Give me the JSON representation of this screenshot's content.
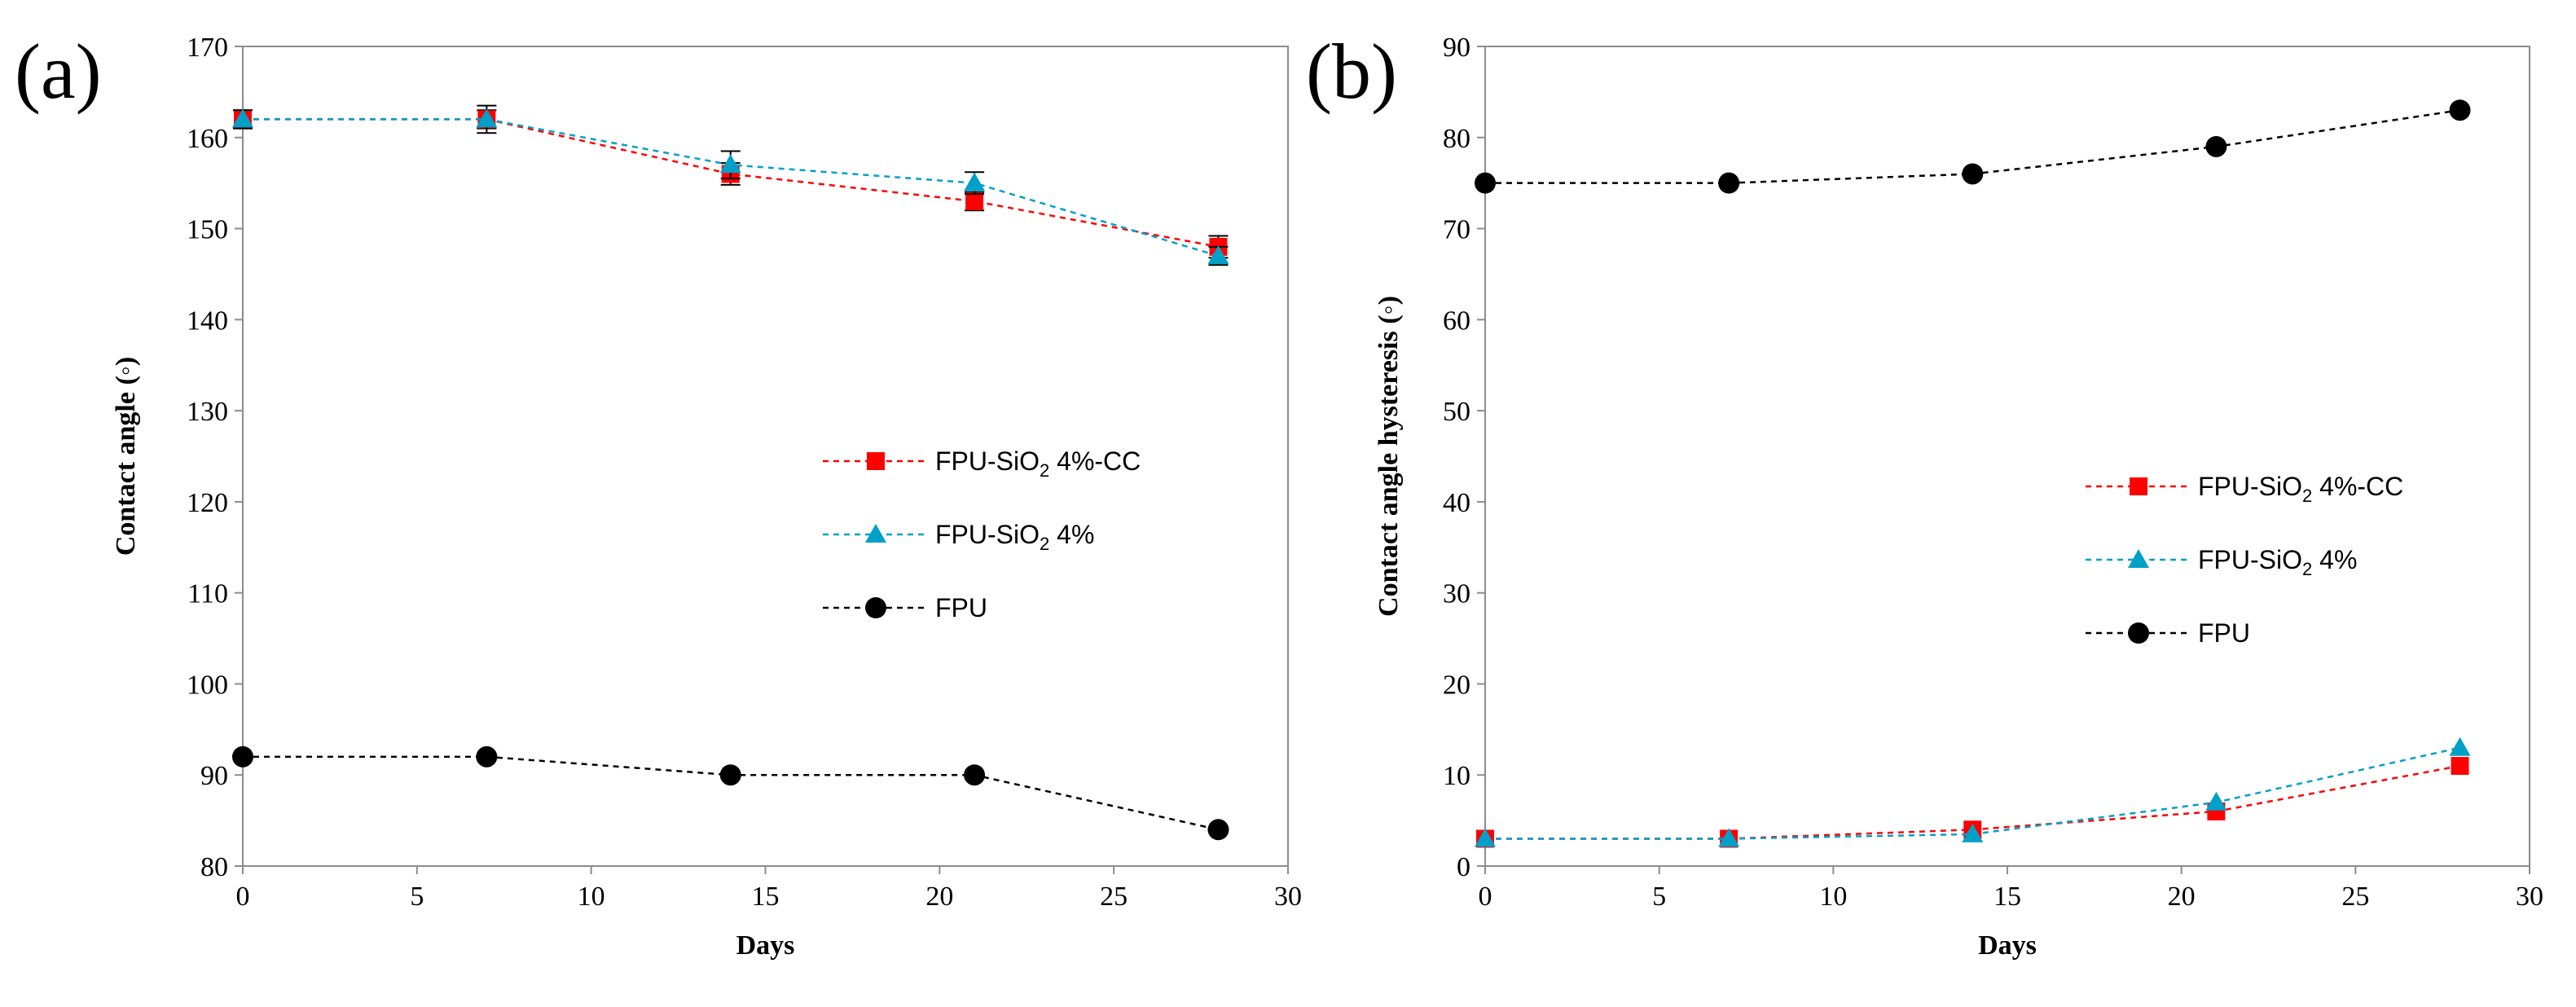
{
  "chart_data": [
    {
      "panel_label": "(a)",
      "type": "line",
      "xlabel": "Days",
      "ylabel": "Contact  angle (◦)",
      "xlim": [
        0,
        30
      ],
      "ylim": [
        80,
        170
      ],
      "xticks": [
        0,
        5,
        10,
        15,
        20,
        25,
        30
      ],
      "yticks": [
        80,
        90,
        100,
        110,
        120,
        130,
        140,
        150,
        160,
        170
      ],
      "legend_position": "center-right",
      "series": [
        {
          "name_main": "FPU-SiO",
          "name_sub": "2",
          "name_tail": " 4%-CC",
          "color": "#ff0000",
          "marker": "square",
          "x": [
            0,
            7,
            14,
            21,
            28
          ],
          "y": [
            162,
            162,
            156,
            153,
            148
          ],
          "err": [
            1,
            1,
            1.2,
            1,
            1.2
          ]
        },
        {
          "name_main": "FPU-SiO",
          "name_sub": "2",
          "name_tail": " 4%",
          "color": "#00a0c8",
          "marker": "triangle",
          "x": [
            0,
            7,
            14,
            21,
            28
          ],
          "y": [
            162,
            162,
            157,
            155,
            147
          ],
          "err": [
            1,
            1.5,
            1.5,
            1.2,
            1
          ]
        },
        {
          "name_main": "FPU",
          "name_sub": "",
          "name_tail": "",
          "color": "#000000",
          "marker": "circle",
          "x": [
            0,
            7,
            14,
            21,
            28
          ],
          "y": [
            92,
            92,
            90,
            90,
            84
          ],
          "err": [
            0,
            0,
            0,
            0,
            0
          ]
        }
      ]
    },
    {
      "panel_label": "(b)",
      "type": "line",
      "xlabel": "Days",
      "ylabel": "Contact  angle hysteresis (◦)",
      "xlim": [
        0,
        30
      ],
      "ylim": [
        0,
        90
      ],
      "xticks": [
        0,
        5,
        10,
        15,
        20,
        25,
        30
      ],
      "yticks": [
        0,
        10,
        20,
        30,
        40,
        50,
        60,
        70,
        80,
        90
      ],
      "legend_position": "center-right",
      "series": [
        {
          "name_main": "FPU-SiO",
          "name_sub": "2",
          "name_tail": " 4%-CC",
          "color": "#ff0000",
          "marker": "square",
          "x": [
            0,
            7,
            14,
            21,
            28
          ],
          "y": [
            3,
            3,
            4,
            6,
            11
          ],
          "err": [
            0,
            0,
            0,
            0,
            0
          ]
        },
        {
          "name_main": "FPU-SiO",
          "name_sub": "2",
          "name_tail": " 4%",
          "color": "#00a0c8",
          "marker": "triangle",
          "x": [
            0,
            7,
            14,
            21,
            28
          ],
          "y": [
            3,
            3,
            3.5,
            7,
            13
          ],
          "err": [
            0,
            0,
            0,
            0,
            0
          ]
        },
        {
          "name_main": "FPU",
          "name_sub": "",
          "name_tail": "",
          "color": "#000000",
          "marker": "circle",
          "x": [
            0,
            7,
            14,
            21,
            28
          ],
          "y": [
            75,
            75,
            76,
            79,
            83
          ],
          "err": [
            0,
            0,
            0,
            0,
            0
          ]
        }
      ]
    }
  ]
}
